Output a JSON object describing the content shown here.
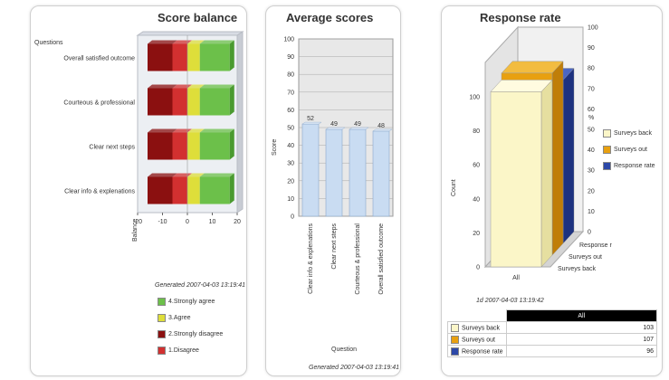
{
  "colors": {
    "strongly_agree": "#6cc04a",
    "agree": "#dede3a",
    "strongly_disagree": "#8b1010",
    "disagree": "#d23030",
    "avg_bar": "#c9dcf2",
    "surveys_back": "#fbf6c8",
    "surveys_out": "#e8a010",
    "response_rate": "#2c48a8"
  },
  "chart_data": [
    {
      "type": "bar",
      "title": "Score balance",
      "ylabel": "Questions",
      "xlabel": "Balance",
      "orientation": "horizontal",
      "stacked": true,
      "categories": [
        "Overall satisfied outcome",
        "Courteous & professional",
        "Clear next steps",
        "Clear info & explenations"
      ],
      "xlim": [
        -20,
        20
      ],
      "xticks": [
        -20,
        -10,
        0,
        10,
        20
      ],
      "series": [
        {
          "name": "1.Disagree",
          "values": [
            -6,
            -6,
            -6,
            -6
          ]
        },
        {
          "name": "2.Strongly disagree",
          "values": [
            -10,
            -10,
            -10,
            -10
          ]
        },
        {
          "name": "3.Agree",
          "values": [
            5,
            5,
            5,
            5
          ]
        },
        {
          "name": "4.Strongly agree",
          "values": [
            12,
            12,
            12,
            12
          ]
        }
      ],
      "generated": "Generated 2007-04-03 13:19:41",
      "legend": "bottom"
    },
    {
      "type": "bar",
      "title": "Average scores",
      "ylabel": "Score",
      "xlabel": "Question",
      "categories": [
        "Clear info & explenations",
        "Clear next steps",
        "Courteous & professional",
        "Overall satisfied outcome"
      ],
      "values": [
        52,
        49,
        49,
        48
      ],
      "data_labels": [
        "52",
        "49",
        "49",
        "48"
      ],
      "ylim": [
        0,
        100
      ],
      "yticks": [
        0,
        10,
        20,
        30,
        40,
        50,
        60,
        70,
        80,
        90,
        100
      ],
      "generated": "Generated 2007-04-03 13:19:41",
      "grid": true
    },
    {
      "type": "bar",
      "title": "Response rate",
      "ylabel": "Count",
      "y2label": "%",
      "categories": [
        "All"
      ],
      "series": [
        {
          "name": "Surveys back",
          "values": [
            103
          ]
        },
        {
          "name": "Surveys out",
          "values": [
            107
          ]
        },
        {
          "name": "Response rate",
          "values": [
            96
          ]
        }
      ],
      "ylim": [
        0,
        100
      ],
      "yticks": [
        0,
        20,
        40,
        60,
        80,
        100
      ],
      "y2lim": [
        0,
        100
      ],
      "y2ticks": [
        0,
        10,
        20,
        30,
        40,
        50,
        60,
        70,
        80,
        90,
        100
      ],
      "depth_labels": [
        "Response r",
        "Surveys out",
        "Surveys back"
      ],
      "generated": "1d 2007-04-03 13:19:42",
      "legend": "right",
      "table": {
        "header": "All",
        "rows": [
          {
            "label": "Surveys back",
            "value": "103"
          },
          {
            "label": "Surveys out",
            "value": "107"
          },
          {
            "label": "Response rate",
            "value": "96"
          }
        ]
      }
    }
  ]
}
